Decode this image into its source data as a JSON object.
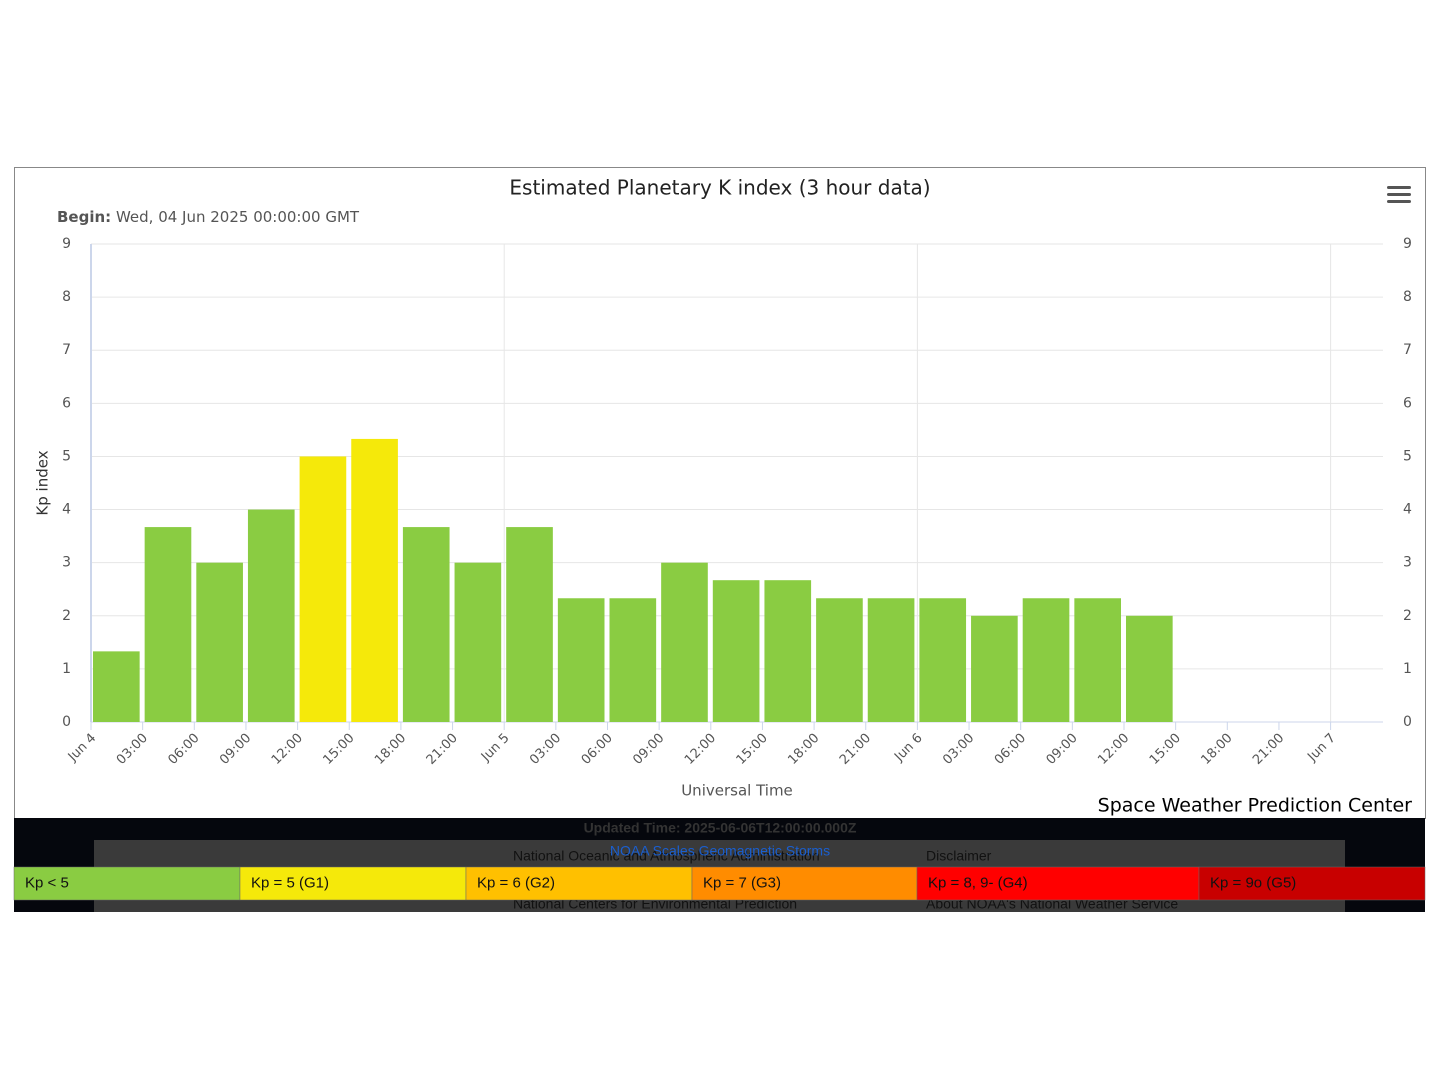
{
  "chart_data": {
    "type": "bar",
    "title": "Estimated Planetary K index (3 hour data)",
    "subtitle_label": "Begin:",
    "subtitle": "Wed, 04 Jun 2025 00:00:00 GMT",
    "y_label": "Kp index",
    "x_label": "Universal Time",
    "credit": "Space Weather Prediction Center",
    "categories": [
      "Jun 4",
      "03:00",
      "06:00",
      "09:00",
      "12:00",
      "15:00",
      "18:00",
      "21:00",
      "Jun 5",
      "03:00",
      "06:00",
      "09:00",
      "12:00",
      "15:00",
      "18:00",
      "21:00",
      "Jun 6",
      "03:00",
      "06:00",
      "09:00",
      "12:00",
      "15:00",
      "18:00",
      "21:00",
      "Jun 7"
    ],
    "values": [
      1.33,
      3.67,
      3,
      4,
      5,
      5.33,
      3.67,
      3,
      3.67,
      2.33,
      2.33,
      3,
      2.67,
      2.67,
      2.33,
      2.33,
      2.33,
      2,
      2.33,
      2.33,
      2,
      null,
      null,
      null,
      null
    ],
    "colors": [
      "#8acc42",
      "#8acc42",
      "#8acc42",
      "#8acc42",
      "#f5e90a",
      "#f5e90a",
      "#8acc42",
      "#8acc42",
      "#8acc42",
      "#8acc42",
      "#8acc42",
      "#8acc42",
      "#8acc42",
      "#8acc42",
      "#8acc42",
      "#8acc42",
      "#8acc42",
      "#8acc42",
      "#8acc42",
      "#8acc42",
      "#8acc42",
      null,
      null,
      null,
      null
    ],
    "ylim": [
      0,
      9
    ],
    "yticks": [
      0,
      1,
      2,
      3,
      4,
      5,
      6,
      7,
      8,
      9
    ],
    "grid": true,
    "scale_legend": [
      {
        "label": "Kp < 5",
        "color": "#8acc42"
      },
      {
        "label": "Kp = 5 (G1)",
        "color": "#f5e90a"
      },
      {
        "label": "Kp = 6 (G2)",
        "color": "#ffc000"
      },
      {
        "label": "Kp = 7 (G3)",
        "color": "#ff8c00"
      },
      {
        "label": "Kp = 8, 9- (G4)",
        "color": "#ff0000"
      },
      {
        "label": "Kp = 9o (G5)",
        "color": "#c80000"
      }
    ]
  },
  "footer": {
    "updated": "Updated Time: 2025-06-06T12:00:00.000Z",
    "link_scales": "NOAA Scales Geomagnetic Storms",
    "links": [
      "National Oceanic and Atmospheric Administration",
      "Disclaimer",
      "National Centers for Environmental Prediction",
      "About NOAA's National Weather Service"
    ]
  }
}
